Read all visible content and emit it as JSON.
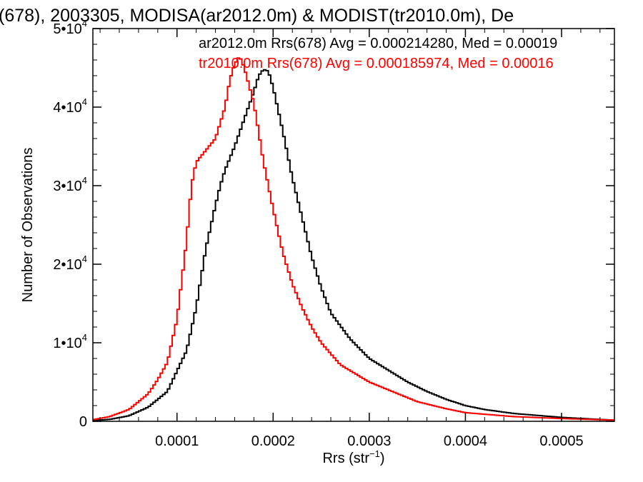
{
  "chart_data": {
    "type": "line",
    "title": "(678), 2003305, MODISA(ar2012.0m) & MODIST(tr2010.0m), De",
    "xlabel": "Rrs (str",
    "xlabel_sup": "−1",
    "xlabel_close": ")",
    "ylabel": "Number of Observations",
    "xlim": [
      1.25e-05,
      0.000555
    ],
    "ylim": [
      0,
      50000
    ],
    "x_ticks": [
      {
        "value": 0.0001,
        "label": "0.0001"
      },
      {
        "value": 0.0002,
        "label": "0.0002"
      },
      {
        "value": 0.0003,
        "label": "0.0003"
      },
      {
        "value": 0.0004,
        "label": "0.0004"
      },
      {
        "value": 0.0005,
        "label": "0.0005"
      }
    ],
    "y_ticks": [
      {
        "value": 0,
        "mantissa": "0",
        "exp": ""
      },
      {
        "value": 10000,
        "mantissa": "1•10",
        "exp": "4"
      },
      {
        "value": 20000,
        "mantissa": "2•10",
        "exp": "4"
      },
      {
        "value": 30000,
        "mantissa": "3•10",
        "exp": "4"
      },
      {
        "value": 40000,
        "mantissa": "4•10",
        "exp": "4"
      },
      {
        "value": 50000,
        "mantissa": "5•10",
        "exp": "4"
      }
    ],
    "series": [
      {
        "name": "ar2012.0m",
        "legend": "ar2012.0m Rrs(678) Avg = 0.000214280, Med = 0.00019",
        "color": "#000000",
        "x": [
          1.25e-05,
          3e-05,
          5e-05,
          7e-05,
          9e-05,
          0.00011,
          0.00012,
          0.00013,
          0.00014,
          0.000145,
          0.00015,
          0.00016,
          0.00017,
          0.00018,
          0.000185,
          0.00019,
          0.000195,
          0.0002,
          0.00021,
          0.00022,
          0.00023,
          0.00024,
          0.00025,
          0.00026,
          0.00028,
          0.0003,
          0.00032,
          0.00034,
          0.00036,
          0.00038,
          0.0004,
          0.00042,
          0.00045,
          0.00048,
          0.0005,
          0.00053,
          0.000555
        ],
        "y": [
          100,
          250,
          700,
          1800,
          3800,
          9000,
          14500,
          22000,
          27500,
          30000,
          32000,
          35000,
          38500,
          42000,
          44000,
          44800,
          44600,
          42500,
          37000,
          31000,
          26000,
          21000,
          17000,
          13800,
          10500,
          8000,
          6500,
          5000,
          3800,
          2800,
          2000,
          1500,
          1000,
          700,
          500,
          300,
          150
        ]
      },
      {
        "name": "tr2010.0m",
        "legend": "tr2010.0m Rrs(678) Avg = 0.000185974, Med = 0.00016",
        "color": "#ff0000",
        "x": [
          1.25e-05,
          3e-05,
          5e-05,
          7e-05,
          8e-05,
          9e-05,
          0.0001,
          0.000105,
          0.00011,
          0.000115,
          0.00012,
          0.00013,
          0.00014,
          0.00015,
          0.000155,
          0.00016,
          0.000165,
          0.00017,
          0.00018,
          0.00019,
          0.0002,
          0.00021,
          0.00022,
          0.00023,
          0.00024,
          0.00025,
          0.00027,
          0.0003,
          0.00033,
          0.00035,
          0.00038,
          0.0004,
          0.00045,
          0.0005,
          0.000555
        ],
        "y": [
          200,
          600,
          1500,
          3500,
          5300,
          7500,
          13000,
          18000,
          23000,
          30000,
          33000,
          34500,
          36000,
          40000,
          43500,
          45500,
          46500,
          45000,
          40500,
          33000,
          27000,
          21500,
          17500,
          14500,
          12000,
          10000,
          7200,
          5000,
          3500,
          2500,
          1600,
          1100,
          600,
          350,
          150
        ]
      }
    ]
  }
}
